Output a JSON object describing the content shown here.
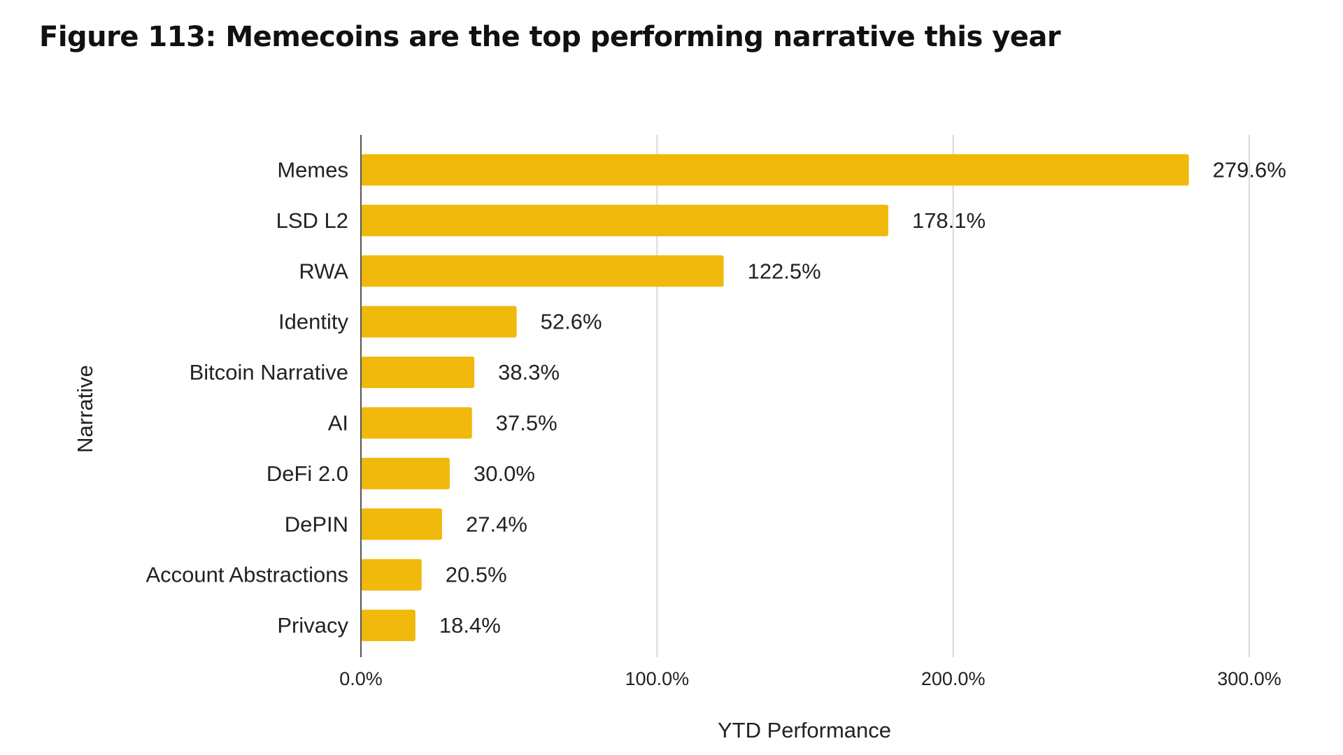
{
  "chart_data": {
    "type": "bar",
    "orientation": "horizontal",
    "title": "Figure 113: Memecoins are the top performing narrative this year",
    "xlabel": "YTD Performance",
    "ylabel": "Narrative",
    "categories": [
      "Memes",
      "LSD L2",
      "RWA",
      "Identity",
      "Bitcoin Narrative",
      "AI",
      "DeFi 2.0",
      "DePIN",
      "Account Abstractions",
      "Privacy"
    ],
    "values": [
      279.6,
      178.1,
      122.5,
      52.6,
      38.3,
      37.5,
      30.0,
      27.4,
      20.5,
      18.4
    ],
    "value_labels": [
      "279.6%",
      "178.1%",
      "122.5%",
      "52.6%",
      "38.3%",
      "37.5%",
      "30.0%",
      "27.4%",
      "20.5%",
      "18.4%"
    ],
    "xlim": [
      0,
      300
    ],
    "xticks": [
      0,
      100,
      200,
      300
    ],
    "xtick_labels": [
      "0.0%",
      "100.0%",
      "200.0%",
      "300.0%"
    ],
    "grid": true,
    "legend": "none",
    "bar_color": "#F0B90B",
    "grid_color": "#D9D9D9",
    "axis_color": "#555555"
  }
}
